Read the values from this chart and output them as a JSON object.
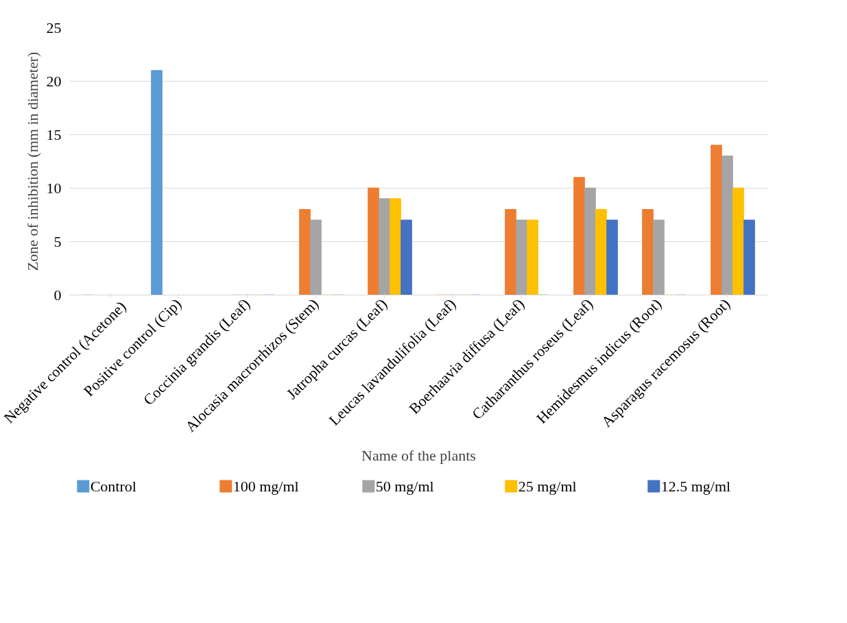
{
  "chart_data": {
    "type": "bar",
    "ylabel": "Zone of inhibition (mm in diameter)",
    "xlabel": "Name of the plants",
    "categories": [
      "Negative  control (Acetone)",
      "Positive control (Cip)",
      "Coccinia grandis (Leaf)",
      "Alocasia macrorrhizos (Stem)",
      "Jatropha curcas (Leaf)",
      "Leucas lavandulifolia (Leaf)",
      "Boerhaavia diffusa (Leaf)",
      "Catharanthus roseus (Leaf)",
      "Hemidesmus indicus (Root)",
      "Asparagus racemosus (Root)"
    ],
    "series": [
      {
        "name": "Control",
        "color": "#5b9bd5",
        "values": [
          0,
          21,
          null,
          null,
          null,
          null,
          null,
          null,
          null,
          null
        ]
      },
      {
        "name": "100 mg/ml",
        "color": "#ed7d31",
        "values": [
          null,
          null,
          0,
          8,
          10,
          0,
          8,
          11,
          8,
          14
        ]
      },
      {
        "name": "50 mg/ml",
        "color": "#a5a5a5",
        "values": [
          null,
          null,
          0,
          7,
          9,
          0,
          7,
          10,
          7,
          13
        ]
      },
      {
        "name": "25 mg/ml",
        "color": "#ffc000",
        "values": [
          null,
          null,
          0,
          0,
          9,
          0,
          7,
          8,
          0,
          10
        ]
      },
      {
        "name": "12.5 mg/ml",
        "color": "#4472c4",
        "values": [
          null,
          null,
          0,
          0,
          7,
          0,
          0,
          7,
          0,
          7
        ]
      }
    ],
    "ylim": [
      0,
      25
    ],
    "yticks": [
      0,
      5,
      10,
      15,
      20,
      25
    ],
    "grid": "y",
    "legend": "bottom"
  }
}
